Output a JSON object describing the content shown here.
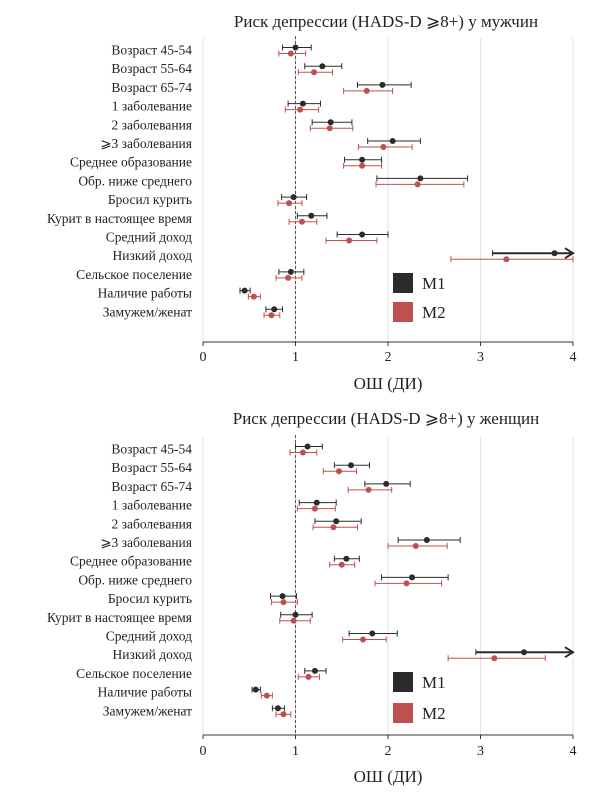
{
  "chart_data": [
    {
      "type": "forest",
      "title": "Риск депрессии (HADS-D ⩾8+) у мужчин",
      "xlabel": "ОШ (ДИ)",
      "xlim": [
        0,
        4
      ],
      "xticks": [
        "0",
        "1",
        "2",
        "3",
        "4"
      ],
      "reference_line": 1,
      "legend": {
        "placement": "bottom-right",
        "entries": [
          "M1",
          "M2"
        ]
      },
      "categories": [
        "Возраст 45-54",
        "Возраст 55-64",
        "Возраст 65-74",
        "1 заболевание",
        "2 заболевания",
        "⩾3  заболевания",
        "Среднее образование",
        "Обр. ниже среднего",
        "Бросил курить",
        "Курит в настоящее время",
        "Средний доход",
        "Низкий доход",
        "Сельское поселение",
        "Наличие работы",
        "Замужем/женат"
      ],
      "series": [
        {
          "name": "M1",
          "color": "#2b2b2b",
          "values": [
            1.0,
            1.29,
            1.94,
            1.08,
            1.38,
            2.05,
            1.72,
            2.35,
            0.98,
            1.17,
            1.72,
            3.8,
            0.95,
            0.45,
            0.77
          ],
          "lower": [
            0.86,
            1.1,
            1.67,
            0.92,
            1.18,
            1.78,
            1.53,
            1.88,
            0.85,
            1.02,
            1.45,
            3.13,
            0.82,
            0.4,
            0.68
          ],
          "upper": [
            1.17,
            1.5,
            2.25,
            1.27,
            1.61,
            2.35,
            1.93,
            2.86,
            1.12,
            1.34,
            2.0,
            4.0,
            1.09,
            0.51,
            0.86
          ],
          "arrow": [
            false,
            false,
            false,
            false,
            false,
            false,
            false,
            false,
            false,
            false,
            false,
            true,
            false,
            false,
            false
          ]
        },
        {
          "name": "M2",
          "color": "#c0504d",
          "values": [
            0.95,
            1.2,
            1.77,
            1.05,
            1.37,
            1.95,
            1.72,
            2.32,
            0.93,
            1.07,
            1.58,
            3.28,
            0.92,
            0.55,
            0.74
          ],
          "lower": [
            0.82,
            1.03,
            1.52,
            0.89,
            1.16,
            1.68,
            1.52,
            1.87,
            0.81,
            0.93,
            1.33,
            2.68,
            0.79,
            0.49,
            0.66
          ],
          "upper": [
            1.11,
            1.4,
            2.05,
            1.25,
            1.62,
            2.26,
            1.93,
            2.82,
            1.07,
            1.23,
            1.88,
            4.0,
            1.07,
            0.62,
            0.83
          ],
          "arrow": [
            false,
            false,
            false,
            false,
            false,
            false,
            false,
            false,
            false,
            false,
            false,
            false,
            false,
            false,
            false
          ]
        }
      ]
    },
    {
      "type": "forest",
      "title": "Риск депрессии (HADS-D ⩾8+) у женщин",
      "xlabel": "ОШ (ДИ)",
      "xlim": [
        0,
        4
      ],
      "xticks": [
        "0",
        "1",
        "2",
        "3",
        "4"
      ],
      "reference_line": 1,
      "legend": {
        "placement": "bottom-right",
        "entries": [
          "M1",
          "M2"
        ]
      },
      "categories": [
        "Возраст 45-54",
        "Возраст 55-64",
        "Возраст 65-74",
        "1 заболевание",
        "2 заболевания",
        "⩾3  заболевания",
        "Среднее образование",
        "Обр. ниже среднего",
        "Бросил курить",
        "Курит в настоящее время",
        "Средний доход",
        "Низкий доход",
        "Сельское поселение",
        "Наличие работы",
        "Замужем/женат"
      ],
      "series": [
        {
          "name": "M1",
          "color": "#2b2b2b",
          "values": [
            1.13,
            1.6,
            1.98,
            1.23,
            1.44,
            2.42,
            1.55,
            2.26,
            0.86,
            1.0,
            1.83,
            3.47,
            1.21,
            0.57,
            0.81
          ],
          "lower": [
            1.0,
            1.42,
            1.75,
            1.04,
            1.21,
            2.11,
            1.42,
            1.93,
            0.73,
            0.84,
            1.58,
            2.95,
            1.1,
            0.53,
            0.75
          ],
          "upper": [
            1.29,
            1.8,
            2.24,
            1.44,
            1.71,
            2.78,
            1.69,
            2.65,
            1.01,
            1.18,
            2.1,
            4.0,
            1.33,
            0.62,
            0.88
          ],
          "arrow": [
            false,
            false,
            false,
            false,
            false,
            false,
            false,
            false,
            false,
            false,
            false,
            true,
            false,
            false,
            false
          ]
        },
        {
          "name": "M2",
          "color": "#c0504d",
          "values": [
            1.08,
            1.47,
            1.79,
            1.21,
            1.41,
            2.3,
            1.5,
            2.2,
            0.87,
            0.98,
            1.73,
            3.15,
            1.14,
            0.69,
            0.87
          ],
          "lower": [
            0.94,
            1.3,
            1.57,
            1.02,
            1.19,
            2.0,
            1.37,
            1.86,
            0.74,
            0.83,
            1.51,
            2.65,
            1.03,
            0.63,
            0.79
          ],
          "upper": [
            1.23,
            1.66,
            2.04,
            1.43,
            1.67,
            2.64,
            1.64,
            2.58,
            1.02,
            1.16,
            1.98,
            3.7,
            1.26,
            0.75,
            0.95
          ],
          "arrow": [
            false,
            false,
            false,
            false,
            false,
            false,
            false,
            false,
            false,
            false,
            false,
            false,
            false,
            false,
            false
          ]
        }
      ]
    }
  ]
}
